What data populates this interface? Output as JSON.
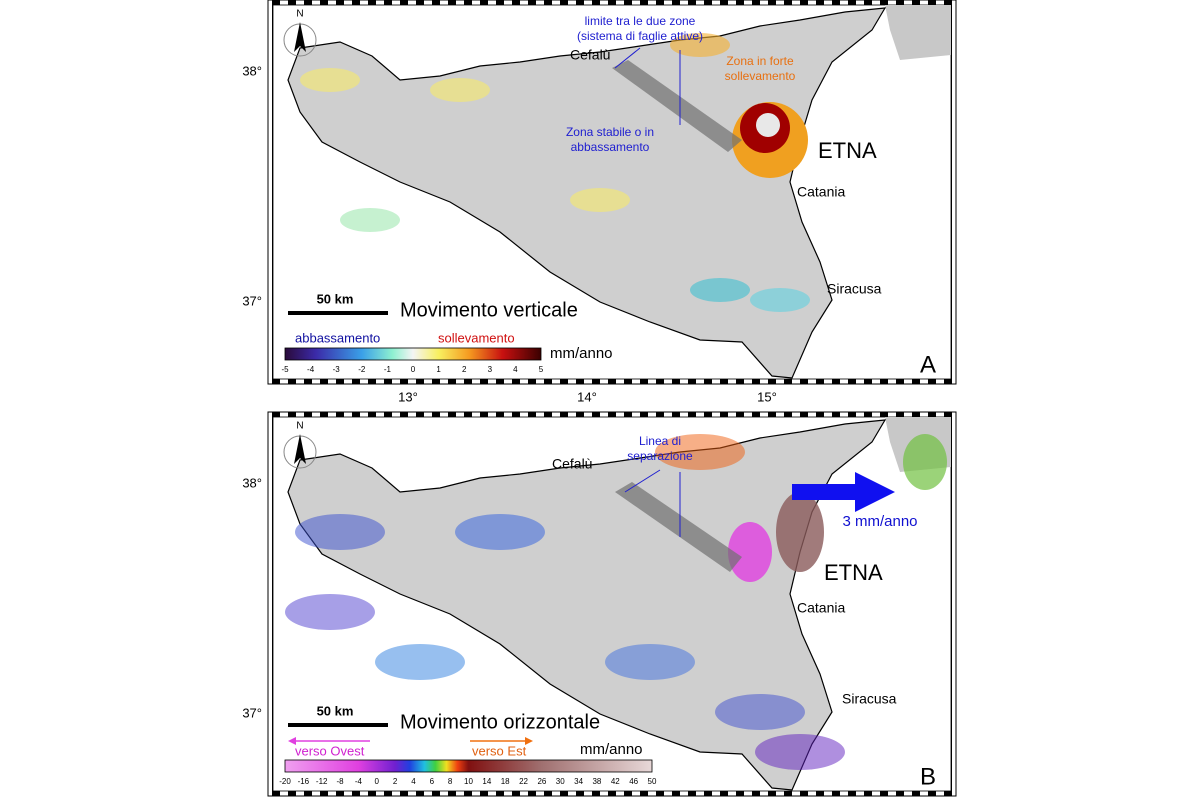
{
  "lon_labels": [
    "13°",
    "14°",
    "15°"
  ],
  "panels": [
    {
      "letter": "A",
      "north": "N",
      "lat_labels": [
        "38°",
        "37°"
      ],
      "places": [
        "Cefalù",
        "ETNA",
        "Catania",
        "Siracusa"
      ],
      "annotations": [
        {
          "lines": [
            "limite tra le due zone",
            "(sistema di faglie attive)"
          ]
        },
        {
          "lines": [
            "Zona in forte",
            "sollevamento"
          ]
        },
        {
          "lines": [
            "Zona stabile o in",
            "abbassamento"
          ]
        }
      ],
      "scale_bar": "50 km",
      "title": "Movimento verticale",
      "legend_left": "abbassamento",
      "legend_right": "sollevamento",
      "unit": "mm/anno",
      "colorbar_ticks": [
        -5,
        -4,
        -3,
        -2,
        -1,
        0,
        1,
        2,
        3,
        4,
        5
      ]
    },
    {
      "letter": "B",
      "north": "N",
      "lat_labels": [
        "38°",
        "37°"
      ],
      "places": [
        "Cefalù",
        "ETNA",
        "Catania",
        "Siracusa"
      ],
      "annotations": [
        {
          "lines": [
            "Linea di",
            "separazione"
          ]
        },
        {
          "lines": [
            "3 mm/anno"
          ]
        }
      ],
      "scale_bar": "50 km",
      "title": "Movimento orizzontale",
      "legend_left": "verso Ovest",
      "legend_right": "verso Est",
      "unit": "mm/anno",
      "colorbar_ticks": [
        -20,
        -16,
        -12,
        -8,
        -4,
        0,
        2,
        4,
        6,
        8,
        10,
        14,
        18,
        22,
        26,
        30,
        34,
        38,
        42,
        46,
        50
      ]
    }
  ]
}
